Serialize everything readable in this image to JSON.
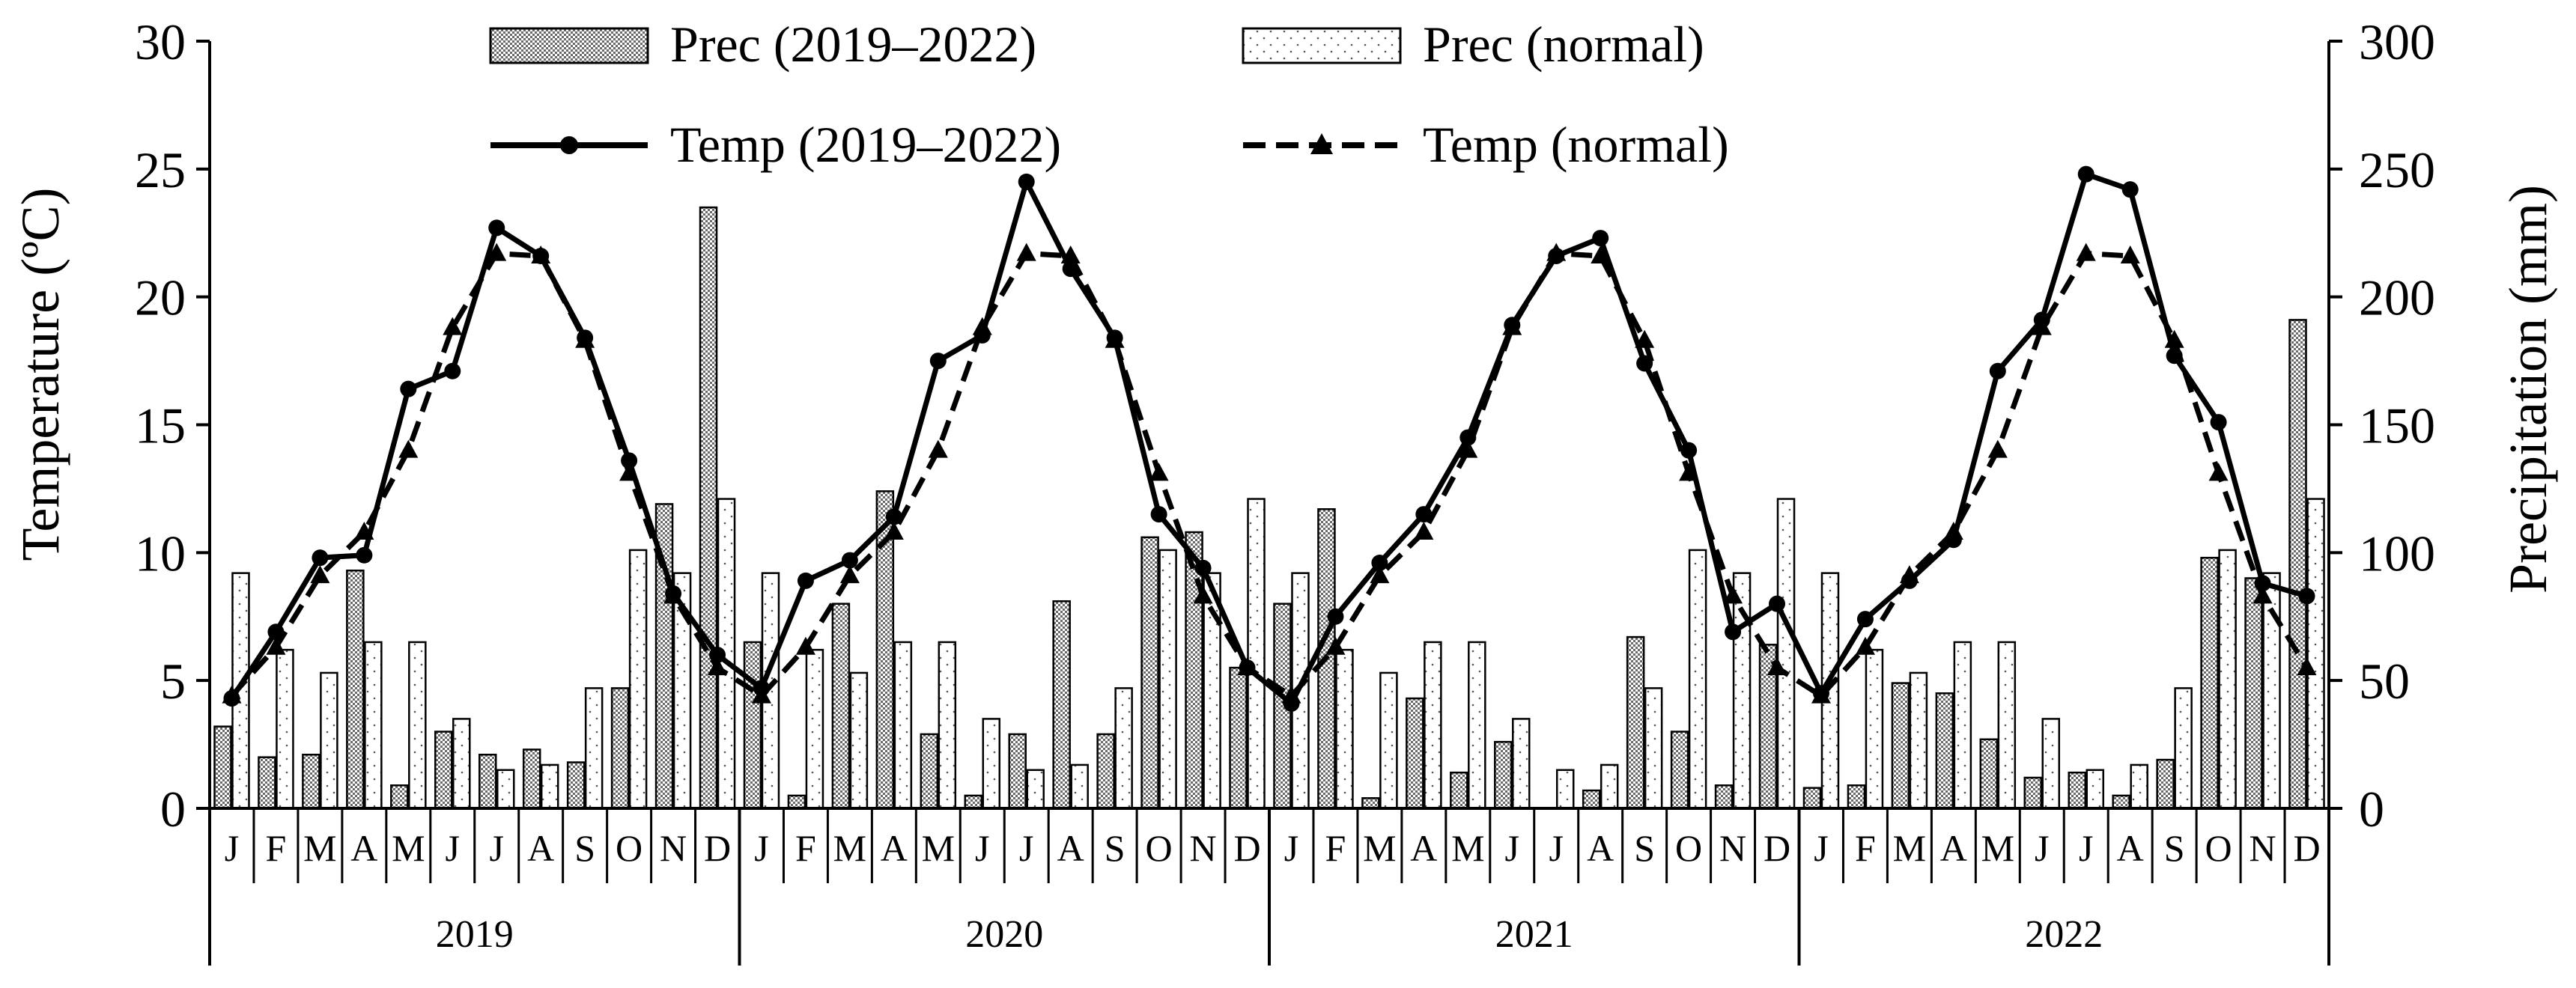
{
  "chart_data": {
    "type": "bar+line",
    "title": "",
    "ylabel_left": "Temperature (ºC)",
    "ylabel_right": "Precipitation (mm)",
    "ylim_left": [
      0,
      30
    ],
    "yticks_left": [
      "0",
      "5",
      "10",
      "15",
      "20",
      "25",
      "30"
    ],
    "ylim_right": [
      0,
      300
    ],
    "yticks_right": [
      "0",
      "50",
      "100",
      "150",
      "200",
      "250",
      "300"
    ],
    "month_labels": [
      "J",
      "F",
      "M",
      "A",
      "M",
      "J",
      "J",
      "A",
      "S",
      "O",
      "N",
      "D"
    ],
    "years": [
      "2019",
      "2020",
      "2021",
      "2022"
    ],
    "legend": {
      "prec_obs": "Prec (2019–2022)",
      "prec_norm": "Prec (normal)",
      "temp_obs": "Temp (2019–2022)",
      "temp_norm": "Temp (normal)"
    },
    "series": [
      {
        "name": "Prec (2019–2022)",
        "kind": "bar",
        "axis": "right",
        "values": [
          32,
          20,
          21,
          93,
          9,
          30,
          21,
          23,
          18,
          47,
          119,
          235,
          65,
          5,
          80,
          124,
          29,
          5,
          29,
          81,
          29,
          106,
          108,
          55,
          80,
          117,
          4,
          43,
          14,
          26,
          0,
          7,
          67,
          30,
          9,
          64,
          8,
          9,
          49,
          45,
          27,
          12,
          14,
          5,
          19,
          98,
          90,
          191
        ]
      },
      {
        "name": "Prec (normal)",
        "kind": "bar",
        "axis": "right",
        "values": [
          92,
          62,
          53,
          65,
          65,
          35,
          15,
          17,
          47,
          101,
          92,
          121,
          92,
          62,
          53,
          65,
          65,
          35,
          15,
          17,
          47,
          101,
          92,
          121,
          92,
          62,
          53,
          65,
          65,
          35,
          15,
          17,
          47,
          101,
          92,
          121,
          92,
          62,
          53,
          65,
          65,
          35,
          15,
          17,
          47,
          101,
          92,
          121
        ]
      },
      {
        "name": "Temp (2019–2022)",
        "kind": "line",
        "axis": "left",
        "values": [
          4.3,
          6.9,
          9.8,
          9.9,
          16.4,
          17.1,
          22.7,
          21.6,
          18.4,
          13.6,
          8.4,
          6.0,
          4.7,
          8.9,
          9.7,
          11.4,
          17.5,
          18.5,
          24.5,
          21.1,
          18.4,
          11.5,
          9.4,
          5.5,
          4.1,
          7.5,
          9.6,
          11.5,
          14.5,
          18.9,
          21.6,
          22.3,
          17.4,
          14.0,
          6.9,
          8.0,
          4.5,
          7.4,
          8.9,
          10.5,
          17.1,
          19.1,
          24.8,
          24.2,
          17.7,
          15.1,
          8.8,
          8.3
        ]
      },
      {
        "name": "Temp (normal)",
        "kind": "line",
        "axis": "left",
        "values": [
          4.4,
          6.3,
          9.1,
          10.8,
          14.0,
          18.8,
          21.7,
          21.6,
          18.3,
          13.1,
          8.3,
          5.5,
          4.4,
          6.3,
          9.1,
          10.8,
          14.0,
          18.8,
          21.7,
          21.6,
          18.3,
          13.1,
          8.3,
          5.5,
          4.4,
          6.3,
          9.1,
          10.8,
          14.0,
          18.8,
          21.7,
          21.6,
          18.3,
          13.1,
          8.3,
          5.5,
          4.4,
          6.3,
          9.1,
          10.8,
          14.0,
          18.8,
          21.7,
          21.6,
          18.3,
          13.1,
          8.3,
          5.5
        ]
      }
    ]
  }
}
